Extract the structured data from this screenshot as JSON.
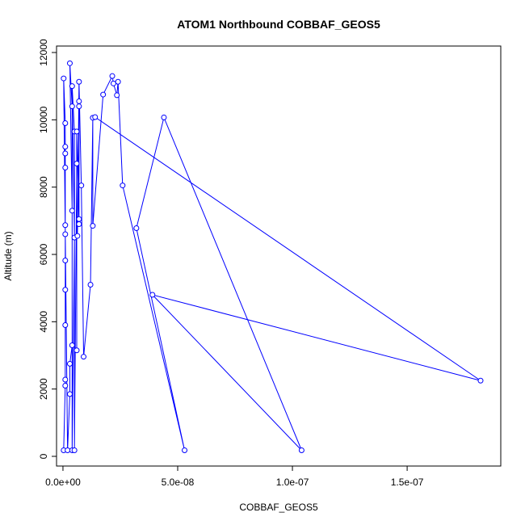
{
  "chart_data": {
    "type": "line",
    "title": "ATOM1 Northbound COBBAF_GEOS5",
    "x_label": "COBBAF_GEOS5",
    "y_label": "Altitude (m)",
    "color": "#0000ff",
    "markers": true,
    "x": [
      3e-10,
      1e-09,
      1e-09,
      1e-09,
      1e-09,
      1e-09,
      1e-09,
      1e-09,
      1e-09,
      1e-09,
      1e-09,
      1e-09,
      3e-10,
      2e-09,
      3e-09,
      3e-09,
      4e-09,
      4e-09,
      3e-09,
      4e-09,
      4e-09,
      5e-09,
      4e-09,
      5e-09,
      5e-09,
      6e-09,
      6e-09,
      6e-09,
      7e-09,
      7e-09,
      7e-09,
      7e-09,
      6.3e-09,
      7e-09,
      8e-09,
      9e-09,
      1.2e-08,
      1.3e-08,
      1.3e-08,
      1.75e-08,
      2.15e-08,
      2.2e-08,
      2.35e-08,
      2.4e-08,
      2.6e-08,
      5.3e-08,
      3.2e-08,
      4.4e-08,
      1.04e-07,
      3.9e-08,
      1.82e-07,
      1.4e-08
    ],
    "values": [
      180,
      2100,
      2280,
      3900,
      4950,
      5820,
      6600,
      6870,
      8580,
      9000,
      9200,
      9900,
      11230,
      180,
      1850,
      2750,
      3300,
      7300,
      11680,
      10400,
      180,
      6500,
      11000,
      9650,
      180,
      8700,
      3150,
      9650,
      6900,
      7050,
      10550,
      10400,
      6550,
      11130,
      8050,
      2960,
      5100,
      10060,
      6850,
      10750,
      11300,
      11080,
      10730,
      11130,
      8050,
      180,
      6780,
      10070,
      180,
      4800,
      2250,
      10080
    ],
    "xlim": [
      -2.8e-09,
      1.908e-07
    ],
    "ylim": [
      -288,
      12192
    ],
    "xticks": [
      {
        "value": 0,
        "label": "0.0e+00"
      },
      {
        "value": 5e-08,
        "label": "5.0e-08"
      },
      {
        "value": 1e-07,
        "label": "1.0e-07"
      },
      {
        "value": 1.5e-07,
        "label": "1.5e-07"
      }
    ],
    "yticks": [
      0,
      2000,
      4000,
      6000,
      8000,
      10000,
      12000
    ]
  }
}
